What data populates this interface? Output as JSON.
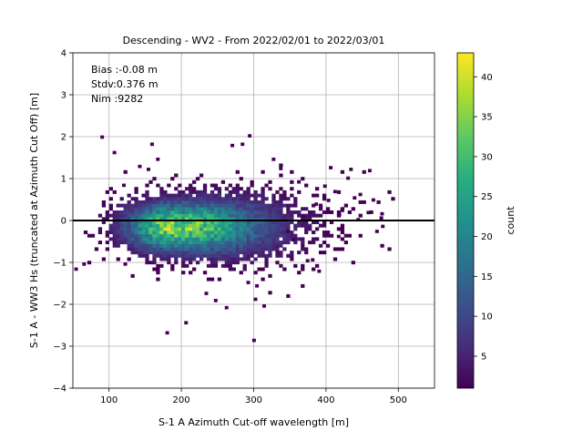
{
  "chart_data": {
    "type": "heatmap",
    "title": "Descending - WV2 - From 2022/02/01 to 2022/03/01",
    "xlabel": "S-1 A Azimuth Cut-off wavelength [m]",
    "ylabel": "S-1 A - WW3 Hs (truncated at Azimuth Cut Off) [m]",
    "xlim": [
      50,
      550
    ],
    "ylim": [
      -4,
      4
    ],
    "x_ticks": [
      100,
      200,
      300,
      400,
      500
    ],
    "y_ticks": [
      -4,
      -3,
      -2,
      -1,
      0,
      1,
      2,
      3,
      4
    ],
    "grid": true,
    "reference_line_y": 0,
    "colorbar": {
      "label": "count",
      "range": [
        1,
        43
      ],
      "ticks": [
        5,
        10,
        15,
        20,
        25,
        30,
        35,
        40
      ],
      "colormap": "viridis"
    },
    "annotations": [
      "Bias :-0.08 m",
      "Stdv:0.376 m",
      "Nim :9282"
    ],
    "density_model": {
      "peak_x": 185,
      "peak_y": -0.15,
      "peak_count": 43,
      "spread_x": 55,
      "spread_y": 0.38
    },
    "outliers": [
      [
        88,
        1.95
      ],
      [
        105,
        1.58
      ],
      [
        118,
        0.8
      ],
      [
        120,
        -1.08
      ],
      [
        63,
        -1.08
      ],
      [
        52,
        -1.2
      ],
      [
        140,
        1.25
      ],
      [
        152,
        1.18
      ],
      [
        157,
        1.78
      ],
      [
        165,
        1.42
      ],
      [
        178,
        -2.72
      ],
      [
        204,
        -2.48
      ],
      [
        232,
        -1.78
      ],
      [
        245,
        -1.95
      ],
      [
        260,
        -2.12
      ],
      [
        282,
        1.78
      ],
      [
        292,
        1.98
      ],
      [
        298,
        -2.9
      ],
      [
        290,
        -1.52
      ],
      [
        300,
        -1.92
      ],
      [
        302,
        -1.6
      ],
      [
        312,
        -2.08
      ],
      [
        325,
        1.42
      ],
      [
        268,
        1.75
      ],
      [
        335,
        1.2
      ],
      [
        360,
        0.88
      ],
      [
        372,
        -1.0
      ],
      [
        379,
        -0.98
      ],
      [
        388,
        -1.25
      ],
      [
        404,
        1.22
      ],
      [
        415,
        -0.42
      ],
      [
        428,
        0.97
      ],
      [
        432,
        1.18
      ],
      [
        437,
        0.5
      ],
      [
        445,
        0.58
      ],
      [
        456,
        0.15
      ],
      [
        458,
        1.15
      ],
      [
        463,
        0.45
      ],
      [
        468,
        -0.3
      ],
      [
        474,
        0.02
      ],
      [
        476,
        -0.18
      ],
      [
        475,
        0.12
      ],
      [
        410,
        0.65
      ],
      [
        396,
        0.78
      ],
      [
        384,
        0.35
      ],
      [
        352,
        -0.5
      ],
      [
        366,
        0.05
      ],
      [
        420,
        0.2
      ],
      [
        442,
        -0.02
      ],
      [
        345,
        -0.3
      ],
      [
        401,
        0.44
      ],
      [
        416,
        0.1
      ]
    ]
  }
}
